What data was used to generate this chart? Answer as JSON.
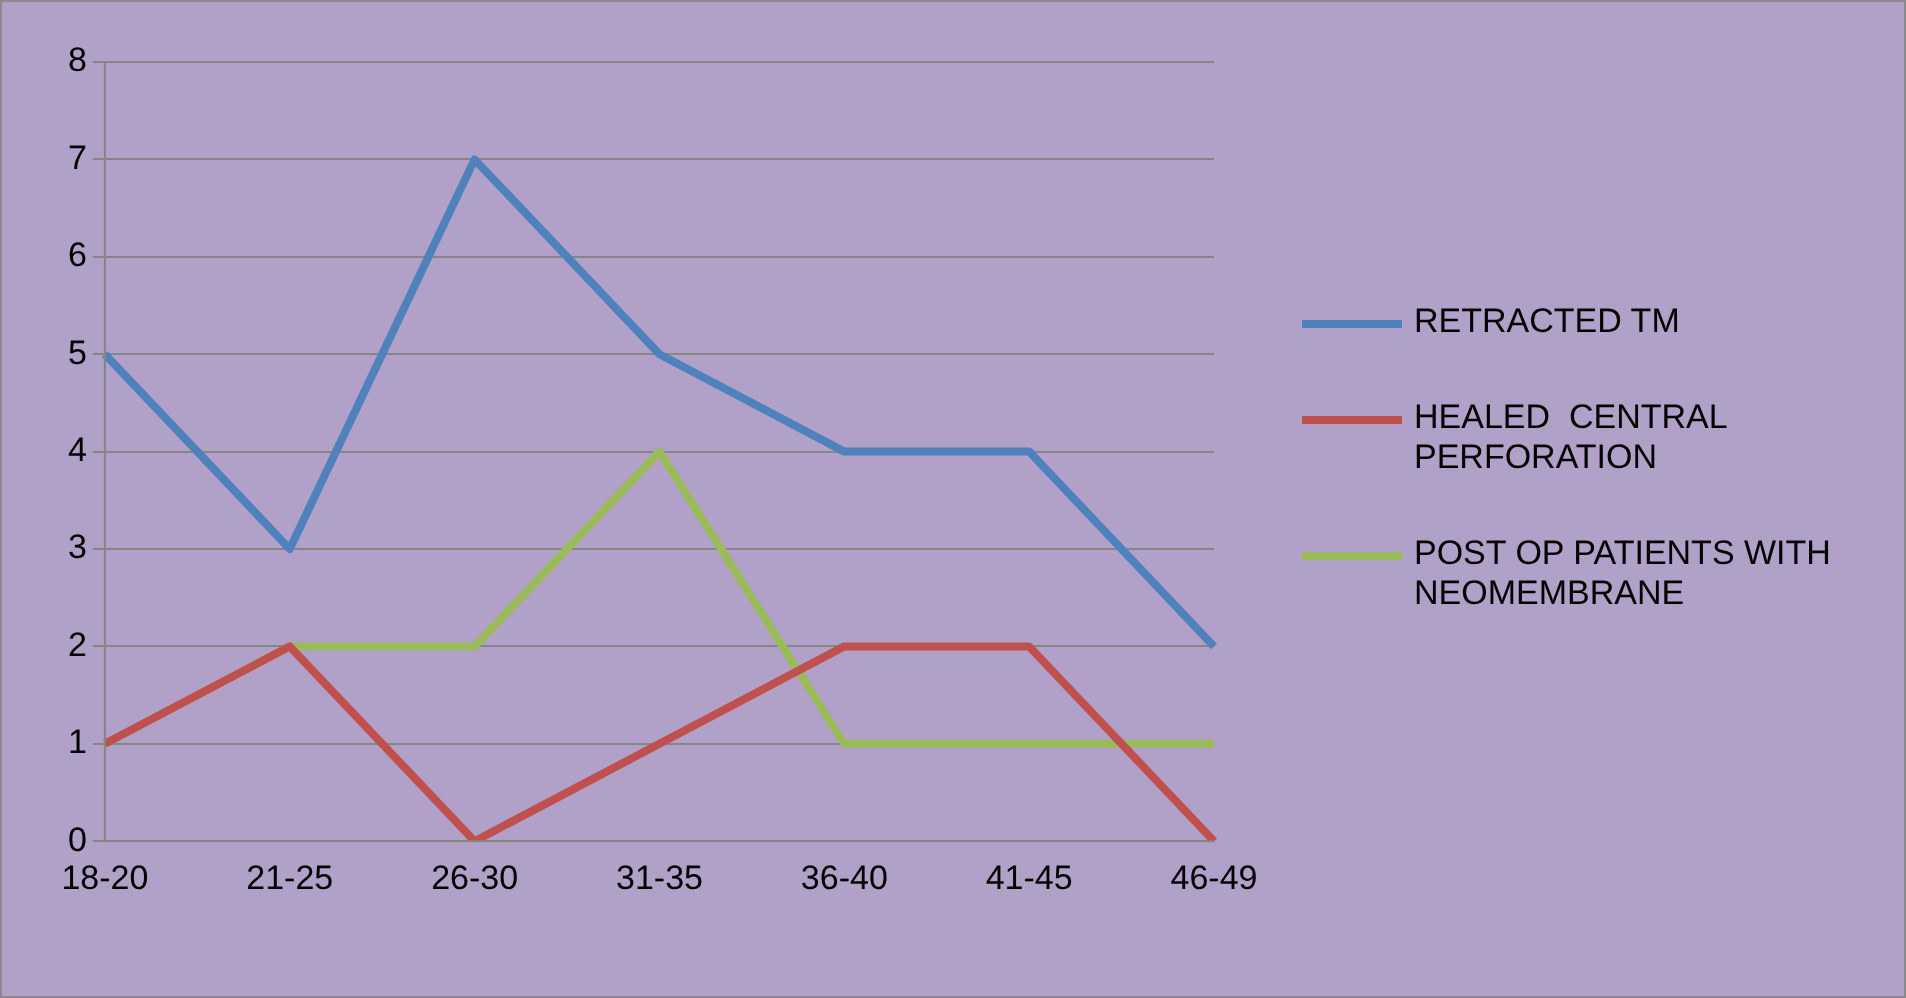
{
  "chart_data": {
    "type": "line",
    "categories": [
      "18-20",
      "21-25",
      "26-30",
      "31-35",
      "36-40",
      "41-45",
      "46-49"
    ],
    "series": [
      {
        "name": "RETRACTED TM",
        "color": "#4f81bd",
        "values": [
          5,
          3,
          7,
          5,
          4,
          4,
          2
        ]
      },
      {
        "name": "HEALED  CENTRAL PERFORATION",
        "color": "#c0504d",
        "values": [
          1,
          2,
          0,
          1,
          2,
          2,
          0
        ]
      },
      {
        "name": "POST OP PATIENTS WITH NEOMEMBRANE",
        "color": "#9bbb59",
        "values": [
          1,
          2,
          2,
          4,
          1,
          1,
          1
        ]
      }
    ],
    "ylim": [
      0,
      8
    ],
    "yticks": [
      0,
      1,
      2,
      3,
      4,
      5,
      6,
      7,
      8
    ],
    "grid": "y",
    "legend": "right",
    "marker": "none",
    "line_style": "solid"
  }
}
